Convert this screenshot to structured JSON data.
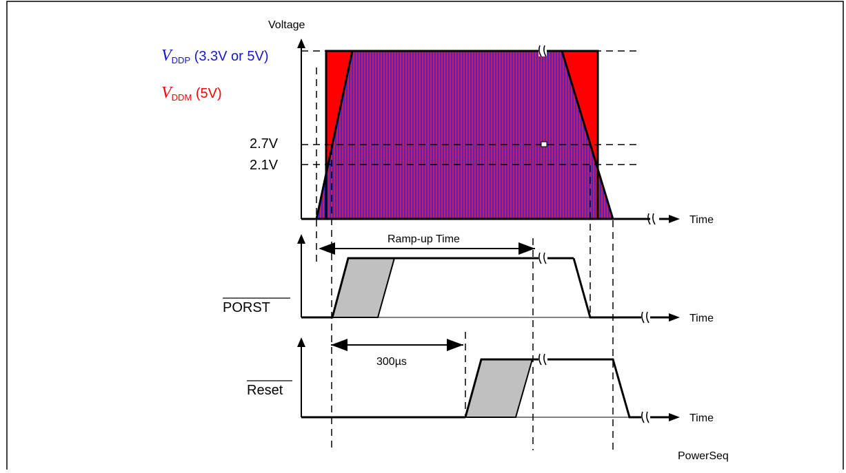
{
  "diagram": {
    "voltage_axis_label": "Voltage",
    "vddp": {
      "symbol": "V",
      "subscript": "DDP",
      "rest": " (3.3V or 5V)",
      "color": "#1515d6"
    },
    "vddm": {
      "symbol": "V",
      "subscript": "DDM",
      "rest": " (5V)",
      "color": "#ff0000"
    },
    "level_2_7": "2.7V",
    "level_2_1": "2.1V",
    "time_labels": [
      "Time",
      "Time",
      "Time"
    ],
    "ramp_up_label": "Ramp-up Time",
    "porst_label": "PORST",
    "delay_label": "300µs",
    "reset_label": "Reset",
    "figure_id": "PowerSeq",
    "colors": {
      "overlap_fill": "#6a2bb0",
      "stripe_red": "#d81b3a",
      "stripe_blue": "#3a2ad8",
      "transition_fill": "#c0c0c0"
    }
  }
}
